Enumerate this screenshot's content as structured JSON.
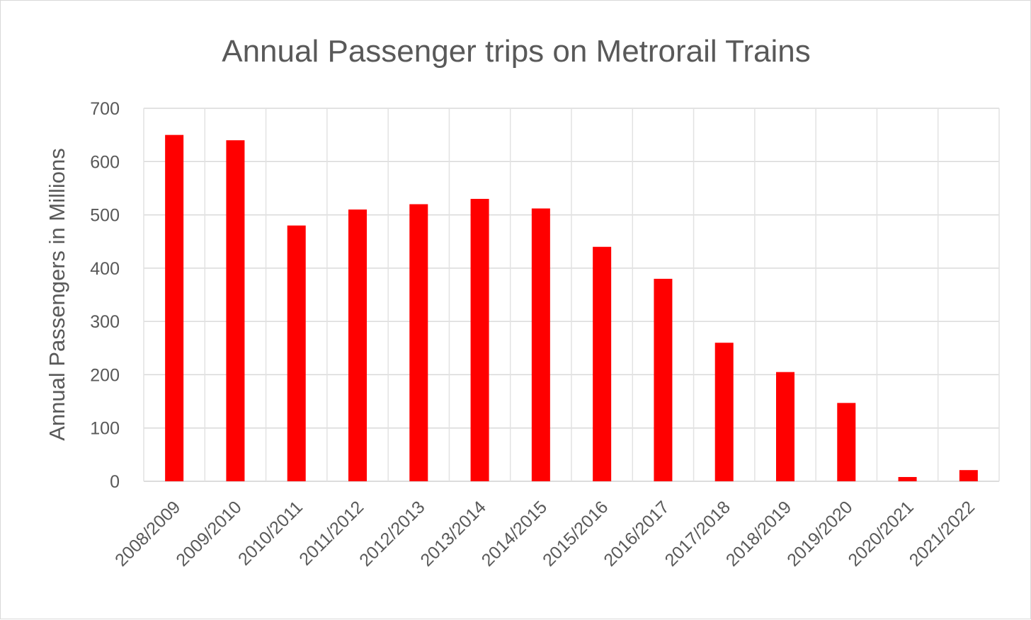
{
  "chart_data": {
    "type": "bar",
    "title": "Annual Passenger trips on Metrorail Trains",
    "xlabel": "",
    "ylabel": "Annual Passengers in Millions",
    "ylim": [
      0,
      700
    ],
    "yticks": [
      0,
      100,
      200,
      300,
      400,
      500,
      600,
      700
    ],
    "grid": true,
    "legend": "none",
    "bar_color": "#ff0000",
    "categories": [
      "2008/2009",
      "2009/2010",
      "2010/2011",
      "2011/2012",
      "2012/2013",
      "2013/2014",
      "2014/2015",
      "2015/2016",
      "2016/2017",
      "2017/2018",
      "2018/2019",
      "2019/2020",
      "2020/2021",
      "2021/2022"
    ],
    "values": [
      650,
      640,
      480,
      510,
      520,
      530,
      512,
      440,
      380,
      260,
      205,
      147,
      8,
      21
    ]
  }
}
